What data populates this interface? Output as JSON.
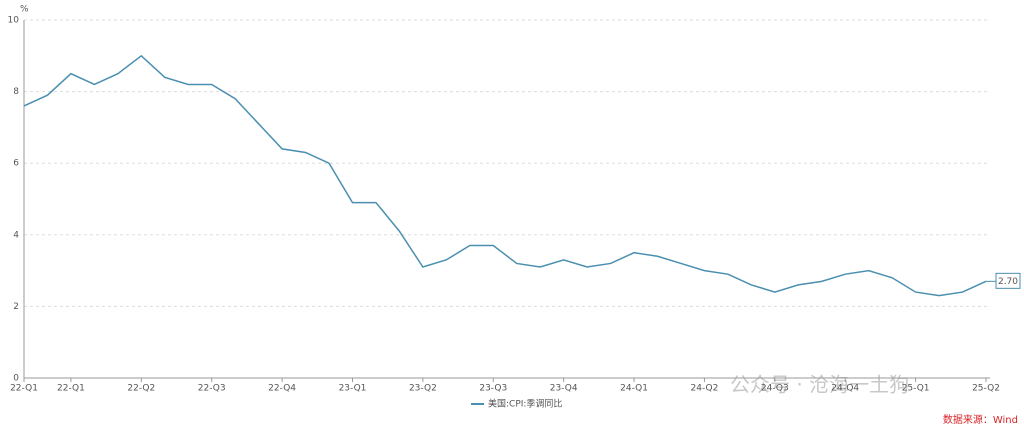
{
  "chart_data": {
    "type": "line",
    "y_unit": "%",
    "categories": [
      "22-Q1",
      null,
      "22-Q1",
      null,
      null,
      "22-Q2",
      null,
      null,
      "22-Q3",
      null,
      null,
      "22-Q4",
      null,
      null,
      "23-Q1",
      null,
      null,
      "23-Q2",
      null,
      null,
      "23-Q3",
      null,
      null,
      "23-Q4",
      null,
      null,
      "24-Q1",
      null,
      null,
      "24-Q2",
      null,
      null,
      "24-Q3",
      null,
      null,
      "24-Q4",
      null,
      null,
      "25-Q1",
      null,
      null,
      "25-Q2"
    ],
    "series": [
      {
        "name": "美国:CPI:季调同比",
        "color": "#4a8fb0",
        "values": [
          7.6,
          7.9,
          8.5,
          8.2,
          8.5,
          9.0,
          8.4,
          8.2,
          8.2,
          7.8,
          7.1,
          6.4,
          6.3,
          6.0,
          4.9,
          4.9,
          4.1,
          3.1,
          3.3,
          3.7,
          3.7,
          3.2,
          3.1,
          3.3,
          3.1,
          3.2,
          3.5,
          3.4,
          3.2,
          3.0,
          2.9,
          2.6,
          2.4,
          2.6,
          2.7,
          2.9,
          3.0,
          2.8,
          2.4,
          2.3,
          2.4,
          2.7
        ],
        "value_labels": [
          null,
          null,
          null,
          null,
          null,
          null,
          null,
          null,
          null,
          null,
          null,
          null,
          null,
          null,
          null,
          null,
          null,
          null,
          null,
          null,
          null,
          null,
          null,
          null,
          null,
          null,
          null,
          null,
          null,
          null,
          null,
          null,
          null,
          null,
          null,
          null,
          null,
          null,
          null,
          null,
          null,
          "2.70"
        ]
      }
    ],
    "ylim": [
      0,
      10
    ],
    "yticks": [
      0,
      2,
      4,
      6,
      8,
      10
    ],
    "grid": true,
    "source": "数据来源：Wind",
    "watermark": "公众号 · 沧海一土狗"
  }
}
